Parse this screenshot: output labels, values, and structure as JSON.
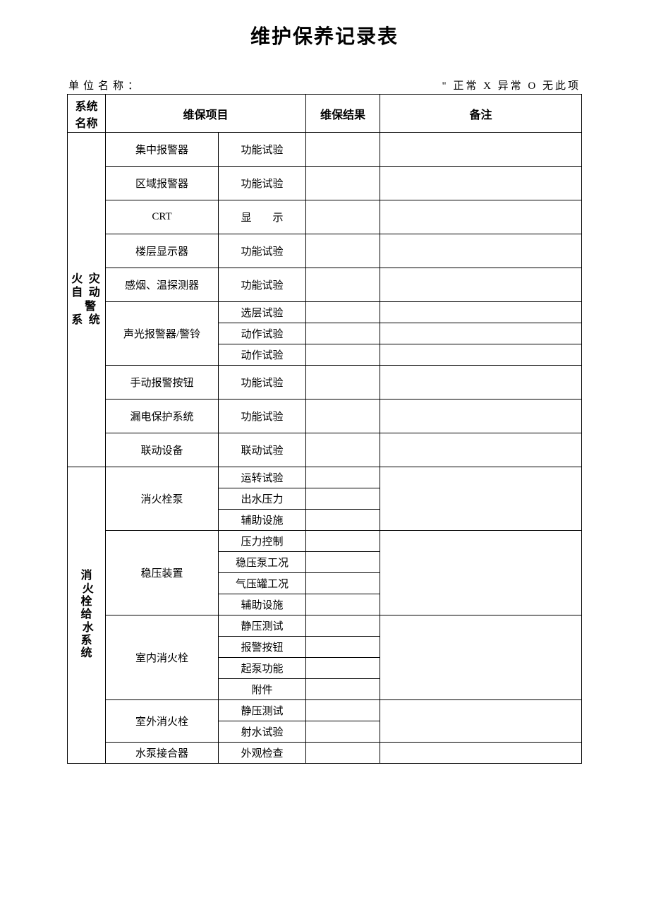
{
  "title": "维护保养记录表",
  "orgLabel": "单位名称：",
  "legend": "\" 正常 X 异常 O 无此项",
  "headers": {
    "system": "系统名称",
    "item": "维保项目",
    "result": "维保结果",
    "remark": "备注"
  },
  "section1": {
    "name": "火 灾\n自 动\n 警\n系 统",
    "rows": [
      {
        "item": "集中报警器",
        "test": "功能试验"
      },
      {
        "item": "区域报警器",
        "test": "功能试验"
      },
      {
        "item": "CRT",
        "test": "显　　示"
      },
      {
        "item": "楼层显示器",
        "test": "功能试验"
      },
      {
        "item": "感烟、温探测器",
        "test": "功能试验"
      },
      {
        "item": "声光报警器/警铃",
        "tests": [
          "选层试验",
          "动作试验",
          "动作试验"
        ]
      },
      {
        "item": "手动报警按钮",
        "test": "功能试验"
      },
      {
        "item": "漏电保护系统",
        "test": "功能试验"
      },
      {
        "item": "联动设备",
        "test": "联动试验"
      }
    ]
  },
  "section2": {
    "name": "消\n 火\n栓\n给\n 水\n系\n统",
    "rows": [
      {
        "item": "消火栓泵",
        "tests": [
          "运转试验",
          "出水压力",
          "辅助设施"
        ]
      },
      {
        "item": "稳压装置",
        "tests": [
          "压力控制",
          "稳压泵工况",
          "气压罐工况",
          "辅助设施"
        ]
      },
      {
        "item": "室内消火栓",
        "tests": [
          "静压测试",
          "报警按钮",
          "起泵功能",
          "附件"
        ]
      },
      {
        "item": "室外消火栓",
        "tests": [
          "静压测试",
          "射水试验"
        ]
      },
      {
        "item": "水泵接合器",
        "test": "外观检查"
      }
    ]
  }
}
